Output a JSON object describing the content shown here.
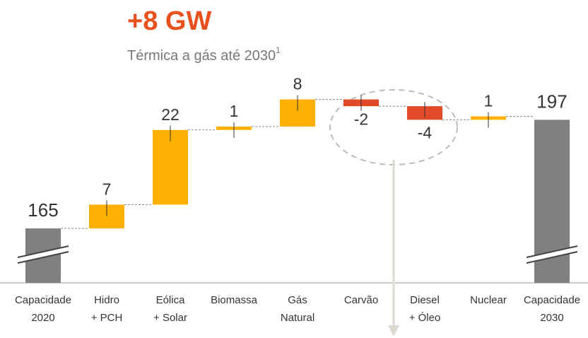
{
  "chart_data": {
    "type": "waterfall",
    "title": "+8 GW",
    "subtitle": "Térmica a gás até 2030",
    "subtitle_note": "1",
    "categories": [
      [
        "Capacidade",
        "2020"
      ],
      [
        "Hidro",
        "+ PCH"
      ],
      [
        "Eólica",
        "+ Solar"
      ],
      [
        "Biomassa"
      ],
      [
        "Gás",
        "Natural"
      ],
      [
        "Carvão"
      ],
      [
        "Diesel",
        "+ Óleo"
      ],
      [
        "Nuclear"
      ],
      [
        "Capacidade",
        "2030"
      ]
    ],
    "values": [
      165,
      7,
      22,
      1,
      8,
      -2,
      -4,
      1,
      197
    ],
    "colors": {
      "total": "#808080",
      "increase": "#FFB000",
      "decrease": "#E04A26"
    },
    "title_color": "#E8501E"
  }
}
